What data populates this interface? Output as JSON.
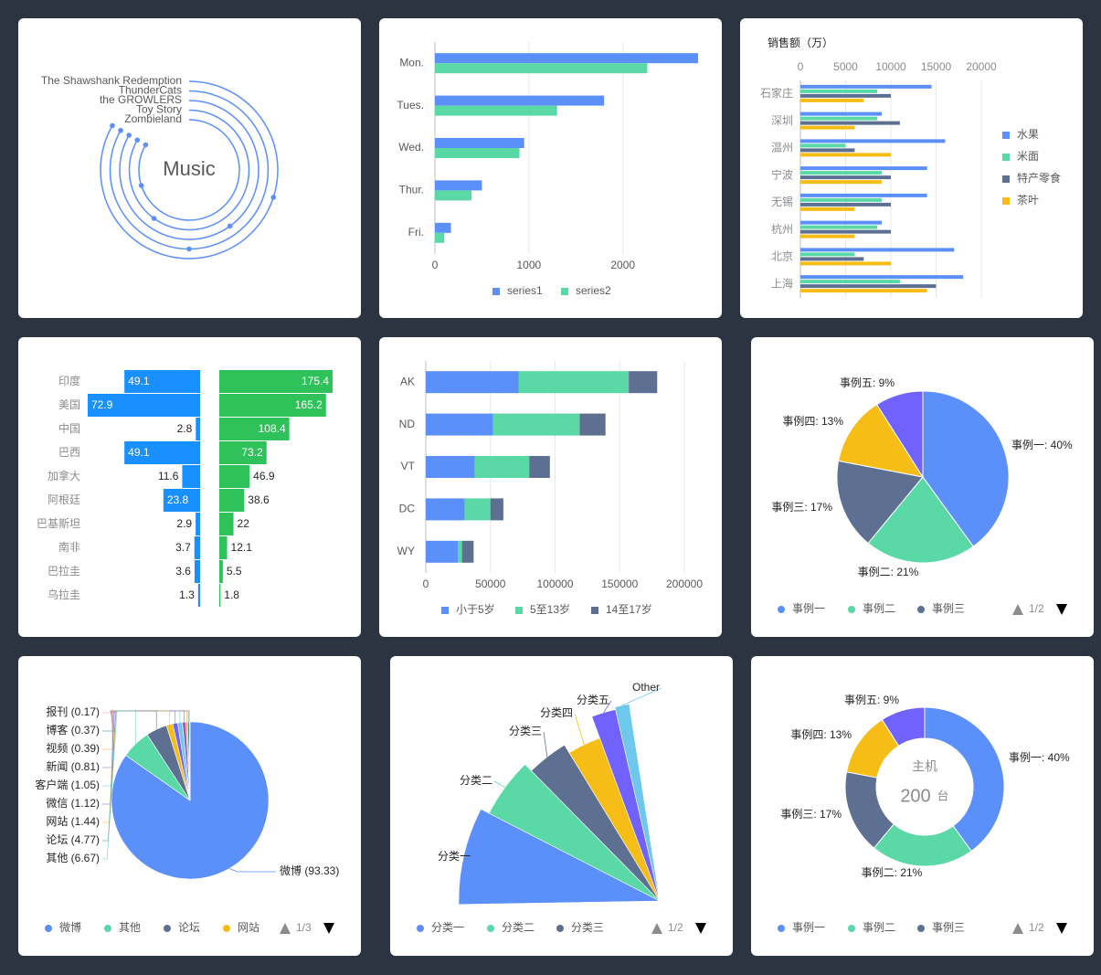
{
  "charts": {
    "music": {
      "center_label": "Music",
      "items": [
        "The Shawshank Redemption",
        "ThunderCats",
        "the GROWLERS",
        "Toy Story",
        "Zombieland"
      ]
    },
    "weekly": {
      "categories": [
        "Mon.",
        "Tues.",
        "Wed.",
        "Thur.",
        "Fri."
      ],
      "x_ticks": [
        "0",
        "1000",
        "2000"
      ],
      "legend": [
        "series1",
        "series2"
      ]
    },
    "sales": {
      "title": "销售额（万）",
      "categories": [
        "石家庄",
        "深圳",
        "温州",
        "宁波",
        "无锡",
        "杭州",
        "北京",
        "上海"
      ],
      "x_ticks": [
        "0",
        "5000",
        "10000",
        "15000",
        "20000"
      ],
      "legend": [
        "水果",
        "米面",
        "特产零食",
        "茶叶"
      ]
    },
    "butterfly": {
      "categories": [
        "印度",
        "美国",
        "中国",
        "巴西",
        "加拿大",
        "阿根廷",
        "巴基斯坦",
        "南非",
        "巴拉圭",
        "乌拉圭"
      ],
      "left_labels": [
        "49.1",
        "72.9",
        "2.8",
        "49.1",
        "11.6",
        "23.8",
        "2.9",
        "3.7",
        "3.6",
        "1.3"
      ],
      "right_labels": [
        "175.4",
        "165.2",
        "108.4",
        "73.2",
        "46.9",
        "38.6",
        "22",
        "12.1",
        "5.5",
        "1.8"
      ]
    },
    "stacked": {
      "categories": [
        "AK",
        "ND",
        "VT",
        "DC",
        "WY"
      ],
      "x_ticks": [
        "0",
        "50000",
        "100000",
        "150000",
        "200000"
      ],
      "legend": [
        "小于5岁",
        "5至13岁",
        "14至17岁"
      ]
    },
    "pie1": {
      "slice_labels": [
        "事例一: 40%",
        "事例二: 21%",
        "事例三: 17%",
        "事例四: 13%",
        "事例五: 9%"
      ],
      "legend": [
        "事例一",
        "事例二",
        "事例三"
      ],
      "pager": "1/2"
    },
    "media": {
      "labels": [
        "报刊 (0.17)",
        "博客 (0.37)",
        "视频 (0.39)",
        "新闻 (0.81)",
        "客户端 (1.05)",
        "微信 (1.12)",
        "网站 (1.44)",
        "论坛 (4.77)",
        "其他 (6.67)"
      ],
      "big_label": "微博 (93.33)",
      "legend": [
        "微博",
        "其他",
        "论坛",
        "网站"
      ],
      "pager": "1/3"
    },
    "rose": {
      "labels": [
        "分类一",
        "分类二",
        "分类三",
        "分类四",
        "分类五",
        "Other"
      ],
      "legend": [
        "分类一",
        "分类二",
        "分类三"
      ],
      "pager": "1/2"
    },
    "donut": {
      "center_title": "主机",
      "center_value": "200",
      "center_unit": "台",
      "slice_labels": [
        "事例一: 40%",
        "事例二: 21%",
        "事例三: 17%",
        "事例四: 13%",
        "事例五: 9%"
      ],
      "legend": [
        "事例一",
        "事例二",
        "事例三"
      ],
      "pager": "1/2"
    }
  },
  "chart_data": [
    {
      "type": "radial-bar",
      "categories": [
        "The Shawshank Redemption",
        "ThunderCats",
        "the GROWLERS",
        "Toy Story",
        "Zombieland"
      ],
      "values": [
        0.3,
        0.5,
        0.4,
        0.6,
        0.7
      ],
      "note_colors": "#5b8ff9"
    },
    {
      "type": "bar",
      "orientation": "horizontal",
      "categories": [
        "Mon.",
        "Tues.",
        "Wed.",
        "Thur.",
        "Fri."
      ],
      "series": [
        {
          "name": "series1",
          "values": [
            2800,
            1800,
            950,
            500,
            170
          ]
        },
        {
          "name": "series2",
          "values": [
            2260,
            1300,
            900,
            390,
            100
          ]
        }
      ],
      "xlim": [
        0,
        2800
      ]
    },
    {
      "type": "bar",
      "orientation": "horizontal",
      "title": "销售额（万）",
      "categories": [
        "石家庄",
        "深圳",
        "温州",
        "宁波",
        "无锡",
        "杭州",
        "北京",
        "上海"
      ],
      "series": [
        {
          "name": "水果",
          "values": [
            14500,
            9000,
            16000,
            14000,
            14000,
            9000,
            17000,
            18000
          ]
        },
        {
          "name": "米面",
          "values": [
            8500,
            8500,
            5000,
            9000,
            9000,
            8500,
            6000,
            11000
          ]
        },
        {
          "name": "特产零食",
          "values": [
            10000,
            11000,
            6000,
            10000,
            10000,
            10000,
            7000,
            15000
          ]
        },
        {
          "name": "茶叶",
          "values": [
            7000,
            6000,
            10000,
            9000,
            6000,
            6000,
            10000,
            14000
          ]
        }
      ],
      "xlim": [
        0,
        20000
      ]
    },
    {
      "type": "bar",
      "orientation": "butterfly",
      "categories": [
        "印度",
        "美国",
        "中国",
        "巴西",
        "加拿大",
        "阿根廷",
        "巴基斯坦",
        "南非",
        "巴拉圭",
        "乌拉圭"
      ],
      "series": [
        {
          "values": [
            49.1,
            72.9,
            2.8,
            49.1,
            11.6,
            23.8,
            2.9,
            3.7,
            3.6,
            1.3
          ]
        },
        {
          "values": [
            175.4,
            165.2,
            108.4,
            73.2,
            46.9,
            38.6,
            22,
            12.1,
            5.5,
            1.8
          ]
        }
      ]
    },
    {
      "type": "bar",
      "orientation": "horizontal-stacked",
      "categories": [
        "AK",
        "ND",
        "VT",
        "DC",
        "WY"
      ],
      "series": [
        {
          "name": "小于5岁",
          "values": [
            72000,
            52000,
            38000,
            30000,
            25000
          ]
        },
        {
          "name": "5至13岁",
          "values": [
            85000,
            67000,
            42000,
            20000,
            3000
          ]
        },
        {
          "name": "14至17岁",
          "values": [
            22000,
            20000,
            16000,
            10000,
            9000
          ]
        }
      ],
      "xlim": [
        0,
        200000
      ]
    },
    {
      "type": "pie",
      "categories": [
        "事例一",
        "事例二",
        "事例三",
        "事例四",
        "事例五"
      ],
      "values": [
        40,
        21,
        17,
        13,
        9
      ]
    },
    {
      "type": "pie",
      "categories": [
        "微博",
        "其他",
        "论坛",
        "网站",
        "微信",
        "客户端",
        "新闻",
        "视频",
        "博客",
        "报刊"
      ],
      "values": [
        93.33,
        6.67,
        4.77,
        1.44,
        1.12,
        1.05,
        0.81,
        0.39,
        0.37,
        0.17
      ]
    },
    {
      "type": "pie",
      "variant": "rose",
      "categories": [
        "分类一",
        "分类二",
        "分类三",
        "分类四",
        "分类五",
        "Other"
      ],
      "values": [
        0.21,
        0.12,
        0.08,
        0.07,
        0.05,
        0.025
      ]
    },
    {
      "type": "pie",
      "variant": "donut",
      "categories": [
        "事例一",
        "事例二",
        "事例三",
        "事例四",
        "事例五"
      ],
      "values": [
        40,
        21,
        17,
        13,
        9
      ]
    }
  ],
  "colors": {
    "blue": "#5b8ff9",
    "green": "#5ad8a6",
    "slate": "#5d7092",
    "yellow": "#f6bd16",
    "purple": "#7262fd",
    "cyan": "#6dc8ec",
    "bar_blue": "#1890ff",
    "bar_green": "#2fc25b",
    "text": "#595959",
    "axis": "#8c8c8c",
    "grid": "#e8e8e8"
  }
}
